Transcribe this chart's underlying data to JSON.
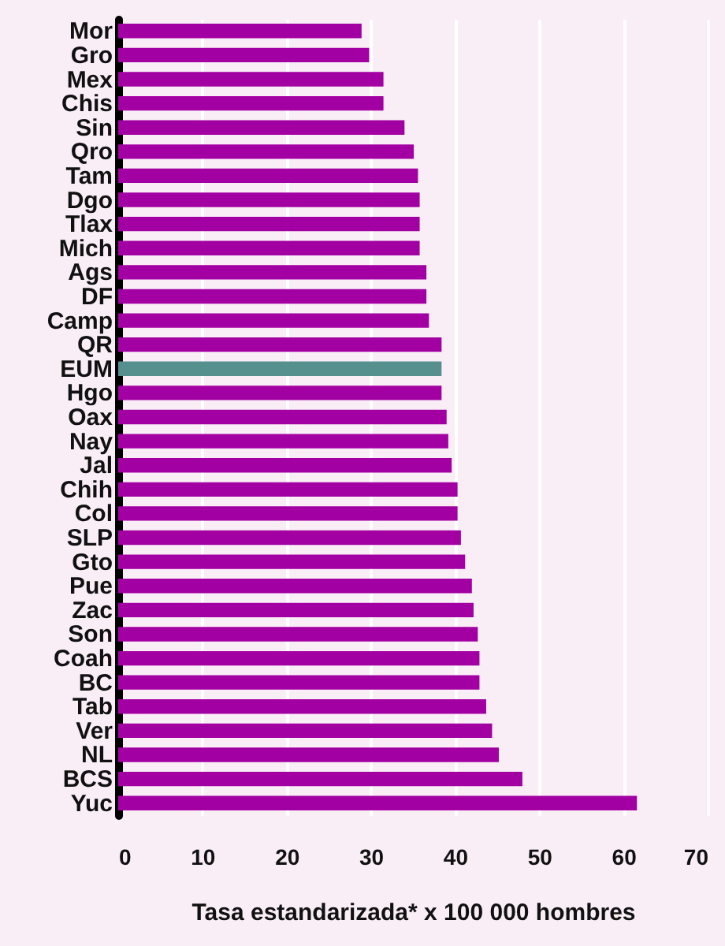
{
  "chart_data": {
    "type": "bar",
    "orientation": "horizontal",
    "xlabel": "Tasa estandarizada* x 100 000 hombres",
    "categories": [
      "Mor",
      "Gro",
      "Mex",
      "Chis",
      "Sin",
      "Qro",
      "Tam",
      "Dgo",
      "Tlax",
      "Mich",
      "Ags",
      "DF",
      "Camp",
      "QR",
      "EUM",
      "Hgo",
      "Oax",
      "Nay",
      "Jal",
      "Chih",
      "Col",
      "SLP",
      "Gto",
      "Pue",
      "Zac",
      "Son",
      "Coah",
      "BC",
      "Tab",
      "Ver",
      "NL",
      "BCS",
      "Yuc"
    ],
    "values": [
      28.9,
      29.8,
      31.5,
      31.5,
      34.0,
      35.1,
      35.6,
      35.8,
      35.8,
      35.8,
      36.6,
      36.6,
      36.9,
      38.4,
      38.4,
      38.4,
      39.0,
      39.2,
      39.6,
      40.3,
      40.3,
      40.7,
      41.2,
      42.0,
      42.2,
      42.7,
      42.9,
      42.9,
      43.7,
      44.4,
      45.2,
      48.0,
      61.6
    ],
    "colors": [
      "#a300a3",
      "#a300a3",
      "#a300a3",
      "#a300a3",
      "#a300a3",
      "#a300a3",
      "#a300a3",
      "#a300a3",
      "#a300a3",
      "#a300a3",
      "#a300a3",
      "#a300a3",
      "#a300a3",
      "#a300a3",
      "#55908f",
      "#a300a3",
      "#a300a3",
      "#a300a3",
      "#a300a3",
      "#a300a3",
      "#a300a3",
      "#a300a3",
      "#a300a3",
      "#a300a3",
      "#a300a3",
      "#a300a3",
      "#a300a3",
      "#a300a3",
      "#a300a3",
      "#a300a3",
      "#a300a3",
      "#a300a3",
      "#a300a3"
    ],
    "xlim": [
      0,
      70
    ],
    "xticks": [
      0,
      10,
      20,
      30,
      40,
      50,
      60,
      70
    ],
    "grid": "x"
  }
}
